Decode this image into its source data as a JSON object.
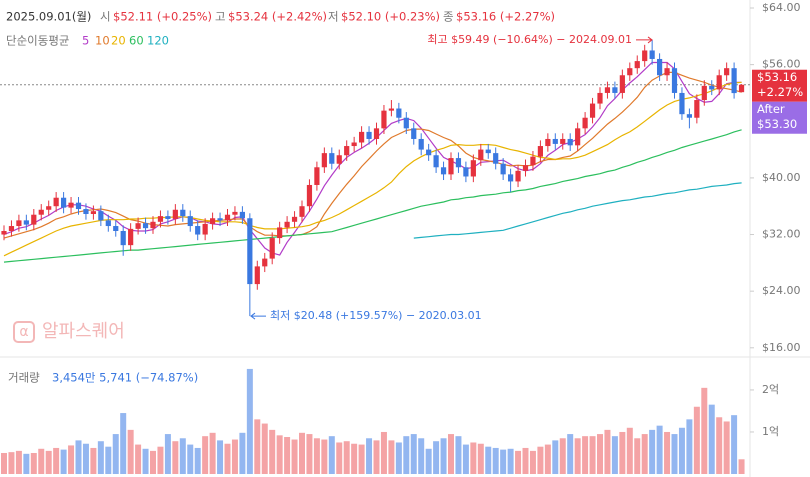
{
  "header": {
    "date": "2025.09.01(월)",
    "items": [
      {
        "name": "시",
        "value": "$52.11 (+0.25%)"
      },
      {
        "name": "고",
        "value": "$53.24 (+2.42%)"
      },
      {
        "name": "저",
        "value": "$52.10 (+0.23%)"
      },
      {
        "name": "종",
        "value": "$53.16 (+2.27%)"
      }
    ]
  },
  "watermark": "알파스퀘어",
  "chart_data": {
    "type": "candlestick",
    "ylim": [
      14.7,
      65.13
    ],
    "yticks": [
      {
        "value": 64,
        "label": "$64.00"
      },
      {
        "value": 56,
        "label": "$56.00"
      },
      {
        "value": 40,
        "label": "$40.00"
      },
      {
        "value": 32,
        "label": "$32.00"
      },
      {
        "value": 24,
        "label": "$24.00"
      },
      {
        "value": 16,
        "label": "$16.00"
      }
    ],
    "up_color": "#e5323e",
    "down_color": "#3a78e0",
    "open": [
      32.0,
      32.5,
      33.2,
      34.0,
      33.4,
      34.8,
      35.5,
      36.0,
      37.2,
      35.8,
      36.5,
      35.6,
      34.9,
      35.3,
      34.0,
      33.2,
      32.5,
      30.5,
      32.8,
      33.6,
      32.9,
      33.8,
      34.6,
      34.2,
      35.5,
      34.6,
      33.2,
      32.0,
      33.5,
      34.3,
      34.0,
      34.8,
      35.2,
      34.3,
      25.0,
      27.5,
      28.6,
      31.5,
      33.0,
      33.8,
      34.5,
      36.0,
      39.0,
      41.5,
      43.5,
      42.0,
      43.2,
      44.5,
      45.0,
      46.5,
      45.5,
      47.0,
      49.5,
      49.8,
      48.5,
      47.0,
      45.5,
      44.0,
      43.2,
      41.5,
      40.5,
      42.8,
      41.5,
      40.2,
      42.5,
      44.0,
      43.5,
      42.0,
      40.5,
      39.5,
      41.0,
      41.8,
      43.0,
      44.5,
      45.5,
      44.8,
      45.5,
      44.6,
      47.0,
      48.5,
      50.5,
      52.0,
      52.8,
      52.0,
      54.5,
      55.5,
      56.5,
      58.0,
      56.8,
      54.5,
      55.5,
      52.0,
      49.0,
      48.5,
      51.0,
      53.0,
      52.5,
      54.5,
      55.5,
      52.11
    ],
    "high": [
      33.3,
      34.0,
      34.8,
      34.8,
      35.6,
      36.3,
      36.8,
      38.0,
      38.0,
      37.3,
      37.3,
      36.4,
      36.1,
      36.1,
      34.8,
      34.0,
      33.3,
      33.6,
      34.4,
      34.4,
      34.6,
      35.4,
      35.4,
      36.3,
      36.3,
      35.4,
      34.0,
      34.3,
      35.1,
      35.1,
      35.6,
      36.0,
      36.0,
      35.0,
      28.3,
      29.4,
      32.3,
      33.8,
      34.6,
      35.3,
      36.8,
      39.8,
      42.3,
      44.3,
      44.3,
      44.0,
      45.3,
      45.8,
      47.3,
      47.3,
      47.8,
      50.3,
      51.0,
      50.6,
      49.3,
      47.8,
      46.3,
      44.8,
      44.0,
      42.3,
      43.6,
      43.6,
      42.3,
      43.3,
      44.8,
      44.8,
      44.3,
      42.8,
      41.3,
      41.8,
      42.6,
      43.8,
      45.3,
      46.3,
      46.3,
      46.3,
      46.3,
      47.8,
      49.3,
      51.3,
      52.8,
      53.6,
      53.6,
      55.3,
      56.3,
      57.3,
      58.8,
      59.49,
      57.6,
      56.3,
      56.3,
      52.8,
      49.8,
      51.8,
      53.8,
      53.8,
      55.3,
      56.3,
      56.3,
      53.24
    ],
    "low": [
      31.2,
      31.7,
      32.4,
      32.6,
      32.6,
      34.0,
      34.7,
      35.2,
      35.0,
      35.0,
      34.8,
      34.1,
      34.1,
      33.2,
      32.4,
      31.7,
      29.0,
      29.7,
      32.0,
      32.1,
      32.1,
      33.0,
      33.4,
      33.4,
      33.8,
      32.4,
      31.2,
      31.2,
      32.7,
      33.2,
      33.2,
      34.0,
      33.5,
      20.48,
      24.2,
      26.7,
      27.8,
      30.7,
      32.2,
      33.0,
      33.7,
      35.2,
      38.2,
      40.7,
      41.2,
      41.2,
      42.4,
      43.7,
      44.2,
      44.7,
      44.7,
      46.2,
      48.7,
      47.7,
      46.2,
      44.7,
      43.2,
      42.4,
      40.7,
      39.7,
      39.7,
      40.7,
      39.4,
      39.4,
      41.7,
      42.7,
      41.2,
      39.7,
      38.0,
      38.7,
      40.2,
      41.0,
      42.2,
      43.7,
      44.0,
      44.0,
      43.8,
      43.8,
      46.2,
      47.7,
      49.7,
      51.2,
      51.2,
      51.2,
      53.7,
      54.7,
      55.7,
      56.0,
      53.7,
      53.7,
      51.2,
      48.2,
      47.0,
      47.7,
      50.2,
      51.7,
      51.7,
      53.7,
      51.2,
      52.1
    ],
    "close": [
      32.5,
      33.2,
      34.0,
      33.4,
      34.8,
      35.5,
      36.0,
      37.2,
      35.8,
      36.5,
      35.6,
      34.9,
      35.3,
      34.0,
      33.2,
      32.5,
      30.5,
      32.8,
      33.6,
      32.9,
      33.8,
      34.6,
      34.2,
      35.5,
      34.6,
      33.2,
      32.0,
      33.5,
      34.3,
      34.0,
      34.8,
      35.2,
      34.3,
      25.0,
      27.5,
      28.6,
      31.5,
      33.0,
      33.8,
      34.5,
      36.0,
      39.0,
      41.5,
      43.5,
      42.0,
      43.2,
      44.5,
      45.0,
      46.5,
      45.5,
      47.0,
      49.5,
      49.8,
      48.5,
      47.0,
      45.5,
      44.0,
      43.2,
      41.5,
      40.5,
      42.8,
      41.5,
      40.2,
      42.5,
      44.0,
      43.5,
      42.0,
      40.5,
      39.5,
      41.0,
      41.8,
      43.0,
      44.5,
      45.5,
      44.8,
      45.5,
      44.6,
      47.0,
      48.5,
      50.5,
      52.0,
      52.8,
      52.0,
      54.5,
      55.5,
      56.5,
      58.0,
      56.8,
      54.5,
      55.5,
      52.0,
      49.0,
      48.5,
      51.0,
      53.0,
      52.5,
      54.5,
      55.5,
      51.98,
      53.16
    ],
    "moving_averages": {
      "title": "단순이동평균",
      "series": [
        {
          "name": "5",
          "color": "#b23cc8",
          "values": [
            32.0,
            32.4,
            32.9,
            33.1,
            33.6,
            34.2,
            34.7,
            35.4,
            35.9,
            36.2,
            36.2,
            36.0,
            35.6,
            35.3,
            34.6,
            34.0,
            33.1,
            32.6,
            32.5,
            32.5,
            32.7,
            33.5,
            33.8,
            34.2,
            34.5,
            34.4,
            33.9,
            33.8,
            33.5,
            33.4,
            33.7,
            34.4,
            34.5,
            32.7,
            31.4,
            30.1,
            29.4,
            29.1,
            30.9,
            32.3,
            33.8,
            35.3,
            37.0,
            38.9,
            40.4,
            41.8,
            42.9,
            43.6,
            44.2,
            44.9,
            45.7,
            46.7,
            47.7,
            48.1,
            48.4,
            48.1,
            47.0,
            45.6,
            44.2,
            42.9,
            42.4,
            41.9,
            41.3,
            41.5,
            42.2,
            42.3,
            42.4,
            42.5,
            41.9,
            41.3,
            41.0,
            41.2,
            42.0,
            43.2,
            43.9,
            44.7,
            45.0,
            45.5,
            46.1,
            47.2,
            48.5,
            50.2,
            51.2,
            52.4,
            53.4,
            54.3,
            55.3,
            56.3,
            56.3,
            56.3,
            55.4,
            53.6,
            51.9,
            51.2,
            50.7,
            50.8,
            51.9,
            53.3,
            53.5,
            53.5
          ]
        },
        {
          "name": "10",
          "color": "#e07a2c",
          "values": [
            31.5,
            31.8,
            32.1,
            32.4,
            32.7,
            33.1,
            33.6,
            34.2,
            34.5,
            34.9,
            35.2,
            35.4,
            35.5,
            35.6,
            35.4,
            35.1,
            34.6,
            34.1,
            33.9,
            33.6,
            33.4,
            33.3,
            33.2,
            33.4,
            33.5,
            33.6,
            33.7,
            33.8,
            33.9,
            34.0,
            34.1,
            34.2,
            34.2,
            33.1,
            32.4,
            31.9,
            31.9,
            31.8,
            31.8,
            31.9,
            32.0,
            32.4,
            33.1,
            34.9,
            36.4,
            37.8,
            39.1,
            40.3,
            41.6,
            42.7,
            43.8,
            44.8,
            45.7,
            46.2,
            46.7,
            46.9,
            46.9,
            46.7,
            46.2,
            45.7,
            45.3,
            44.5,
            43.5,
            42.9,
            42.6,
            42.4,
            42.2,
            41.9,
            41.7,
            41.8,
            41.7,
            41.8,
            42.3,
            42.6,
            42.6,
            42.9,
            43.1,
            43.8,
            44.7,
            45.6,
            46.6,
            47.6,
            48.4,
            49.3,
            50.3,
            51.4,
            52.8,
            53.8,
            54.4,
            54.9,
            54.9,
            54.5,
            54.1,
            53.8,
            53.5,
            53.1,
            52.8,
            52.6,
            52.4,
            52.1
          ]
        },
        {
          "name": "20",
          "color": "#e8b400",
          "values": [
            29.0,
            29.5,
            30.0,
            30.5,
            31.0,
            31.5,
            32.0,
            32.5,
            32.9,
            33.2,
            33.4,
            33.6,
            33.8,
            34.0,
            34.1,
            34.1,
            34.1,
            34.2,
            34.2,
            34.3,
            34.3,
            34.4,
            34.4,
            34.5,
            34.5,
            34.4,
            34.2,
            34.0,
            33.9,
            33.8,
            33.8,
            33.8,
            33.7,
            33.3,
            33.0,
            32.8,
            32.8,
            32.8,
            32.9,
            33.0,
            33.1,
            33.3,
            33.7,
            34.0,
            34.4,
            34.9,
            35.5,
            36.1,
            36.7,
            37.3,
            37.9,
            38.6,
            39.4,
            40.6,
            41.6,
            42.4,
            43.0,
            43.5,
            43.9,
            44.2,
            44.6,
            44.7,
            44.6,
            44.6,
            44.7,
            44.7,
            44.6,
            44.3,
            44.0,
            43.8,
            43.5,
            43.2,
            42.9,
            42.8,
            42.6,
            42.7,
            42.7,
            42.9,
            43.2,
            43.7,
            44.2,
            44.7,
            45.4,
            46.0,
            46.5,
            47.2,
            48.0,
            48.8,
            49.6,
            50.3,
            50.8,
            51.1,
            51.3,
            51.6,
            51.9,
            52.3,
            52.8,
            53.2,
            53.4,
            53.5
          ]
        },
        {
          "name": "60",
          "color": "#2cbf5e",
          "values": [
            28.1,
            28.2,
            28.3,
            28.4,
            28.5,
            28.6,
            28.7,
            28.8,
            28.9,
            29.0,
            29.1,
            29.2,
            29.3,
            29.4,
            29.5,
            29.6,
            29.7,
            29.8,
            29.8,
            29.9,
            30.0,
            30.1,
            30.2,
            30.3,
            30.4,
            30.5,
            30.6,
            30.7,
            30.8,
            30.9,
            31.0,
            31.1,
            31.2,
            31.3,
            31.4,
            31.5,
            31.6,
            31.7,
            31.8,
            31.9,
            32.0,
            32.1,
            32.2,
            32.3,
            32.4,
            32.7,
            33.0,
            33.3,
            33.6,
            33.9,
            34.2,
            34.5,
            34.8,
            35.1,
            35.4,
            35.7,
            36.0,
            36.2,
            36.4,
            36.6,
            36.9,
            37.0,
            37.2,
            37.3,
            37.5,
            37.6,
            37.7,
            37.9,
            38.0,
            38.2,
            38.3,
            38.5,
            38.8,
            39.0,
            39.2,
            39.5,
            39.7,
            39.9,
            40.2,
            40.4,
            40.6,
            40.9,
            41.1,
            41.5,
            41.8,
            42.2,
            42.5,
            42.9,
            43.2,
            43.6,
            43.9,
            44.3,
            44.6,
            44.9,
            45.2,
            45.5,
            45.8,
            46.1,
            46.5,
            46.8
          ]
        },
        {
          "name": "120",
          "color": "#1fb0c0",
          "values": [
            null,
            null,
            null,
            null,
            null,
            null,
            null,
            null,
            null,
            null,
            null,
            null,
            null,
            null,
            null,
            null,
            null,
            null,
            null,
            null,
            null,
            null,
            null,
            null,
            null,
            null,
            null,
            null,
            null,
            null,
            null,
            null,
            null,
            null,
            null,
            null,
            null,
            null,
            null,
            null,
            null,
            null,
            null,
            null,
            null,
            null,
            null,
            null,
            null,
            null,
            null,
            null,
            null,
            null,
            null,
            31.5,
            31.6,
            31.7,
            31.8,
            31.9,
            32.0,
            32.0,
            32.1,
            32.2,
            32.3,
            32.4,
            32.5,
            32.6,
            32.9,
            33.2,
            33.5,
            33.8,
            34.1,
            34.4,
            34.7,
            35.0,
            35.2,
            35.5,
            35.7,
            36.0,
            36.2,
            36.4,
            36.6,
            36.8,
            36.9,
            37.1,
            37.3,
            37.4,
            37.6,
            37.8,
            37.9,
            38.1,
            38.3,
            38.4,
            38.6,
            38.8,
            38.9,
            39.0,
            39.2,
            39.3
          ]
        }
      ]
    },
    "annotations": [
      {
        "value": 59.49,
        "label": "최고 $59.49 (−10.64%) − 2024.09.01",
        "color": "#e5323e"
      },
      {
        "value": 20.48,
        "label": "최저 $20.48 (+159.57%) − 2020.03.01",
        "color": "#3a78e0"
      }
    ],
    "last_price": {
      "value": 53.16,
      "label": "$53.16",
      "change": "+2.27%",
      "color": "#e5323e"
    },
    "after_hours": {
      "title": "After",
      "label": "$53.30",
      "color": "#9a6de6"
    },
    "volume": {
      "title": "거래량",
      "value_label": "3,454만 5,741 (−74.87%)",
      "ylim": [
        0,
        2.76
      ],
      "yticks": [
        {
          "value": 2,
          "label": "2억"
        },
        {
          "value": 1,
          "label": "1억"
        }
      ],
      "up_color": "#f4a3a5",
      "down_color": "#93b6f0",
      "values": [
        0.5,
        0.52,
        0.55,
        0.48,
        0.5,
        0.6,
        0.55,
        0.62,
        0.58,
        0.68,
        0.8,
        0.72,
        0.62,
        0.78,
        0.65,
        0.95,
        1.45,
        1.05,
        0.7,
        0.6,
        0.55,
        0.65,
        0.95,
        0.78,
        0.85,
        0.7,
        0.62,
        0.9,
        0.98,
        0.8,
        0.72,
        0.82,
        0.98,
        2.5,
        1.3,
        1.2,
        1.05,
        0.92,
        0.88,
        0.82,
        0.98,
        0.95,
        0.85,
        0.82,
        0.9,
        0.75,
        0.78,
        0.72,
        0.7,
        0.85,
        0.8,
        1.0,
        0.8,
        0.75,
        0.9,
        0.95,
        0.85,
        0.6,
        0.78,
        0.85,
        0.95,
        0.9,
        0.7,
        0.75,
        0.72,
        0.65,
        0.62,
        0.58,
        0.6,
        0.55,
        0.62,
        0.55,
        0.65,
        0.7,
        0.8,
        0.85,
        0.95,
        0.85,
        0.9,
        0.9,
        0.95,
        1.05,
        0.9,
        1.0,
        1.1,
        0.85,
        0.95,
        1.05,
        1.15,
        1.0,
        0.95,
        1.1,
        1.3,
        1.6,
        2.05,
        1.65,
        1.35,
        1.25,
        1.4,
        0.35
      ]
    }
  }
}
